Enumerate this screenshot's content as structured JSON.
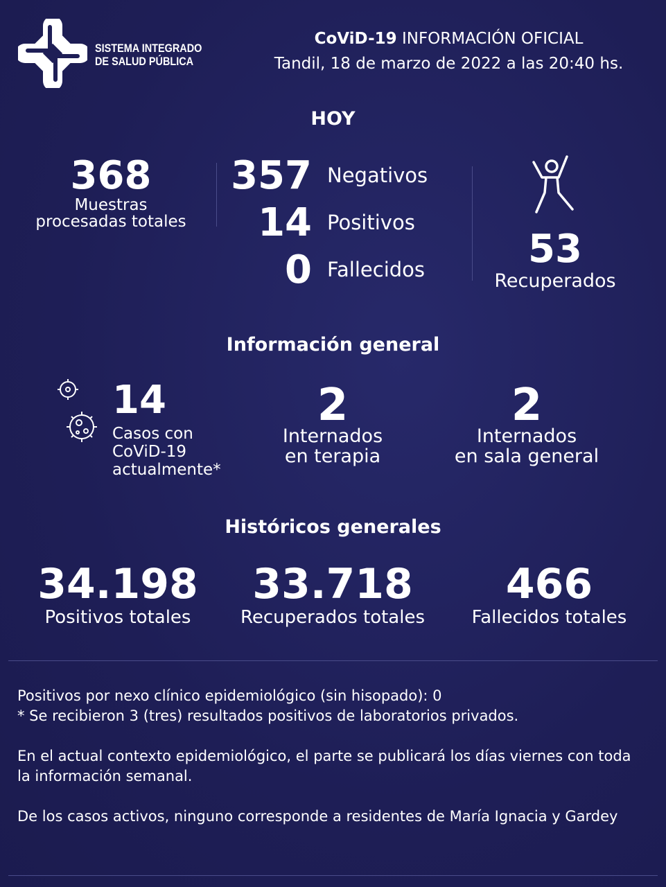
{
  "brand": {
    "logo_line1": "SISTEMA INTEGRADO",
    "logo_line2": "DE SALUD PÚBLICA"
  },
  "header": {
    "title_bold": "CoViD-19",
    "title_rest": " INFORMACIÓN OFICIAL",
    "subtitle": "Tandil, 18 de marzo de 2022 a las 20:40 hs."
  },
  "hoy": {
    "title": "HOY",
    "muestras": {
      "value": "368",
      "label1": "Muestras",
      "label2": "procesadas totales"
    },
    "negativos": {
      "value": "357",
      "label": "Negativos"
    },
    "positivos": {
      "value": "14",
      "label": "Positivos"
    },
    "fallecidos": {
      "value": "0",
      "label": "Fallecidos"
    },
    "recuperados": {
      "value": "53",
      "label": "Recuperados",
      "icon": "person-jumping-icon"
    }
  },
  "general": {
    "title": "Información general",
    "casos": {
      "value": "14",
      "label1": "Casos con",
      "label2": "CoViD-19",
      "label3": "actualmente*",
      "icon": "virus-icon"
    },
    "terapia": {
      "value": "2",
      "label1": "Internados",
      "label2": "en terapia"
    },
    "sala": {
      "value": "2",
      "label1": "Internados",
      "label2": "en sala general"
    }
  },
  "historicos": {
    "title": "Históricos generales",
    "positivos": {
      "value": "34.198",
      "label": "Positivos totales"
    },
    "recuperados": {
      "value": "33.718",
      "label": "Recuperados totales"
    },
    "fallecidos": {
      "value": "466",
      "label": "Fallecidos totales"
    }
  },
  "footer": {
    "line1": "Positivos por nexo clínico epidemiológico (sin hisopado): 0",
    "line2": "* Se recibieron 3 (tres) resultados positivos de laboratorios privados.",
    "para2": "En el actual contexto epidemiológico, el parte se publicará los días viernes con toda la información semanal.",
    "para3": "De los casos activos, ninguno corresponde a residentes de María Ignacia y Gardey"
  }
}
